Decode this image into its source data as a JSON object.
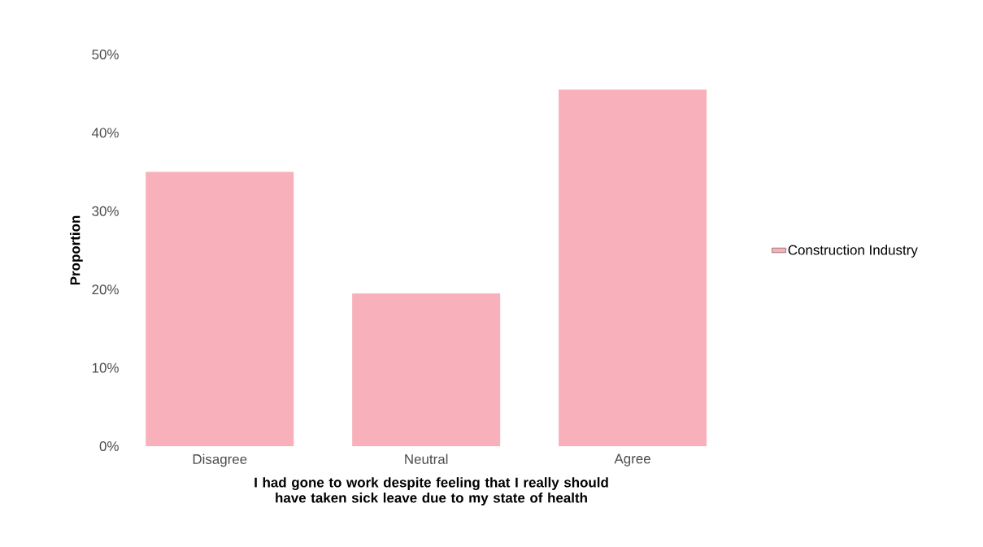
{
  "chart_data": {
    "type": "bar",
    "xlabel": "I had gone to work despite feeling that I really should have taken sick leave due to my state of health",
    "ylabel": "Proportion",
    "categories": [
      "Disagree",
      "Neutral",
      "Agree"
    ],
    "series": [
      {
        "name": "Construction Industry",
        "color": "#f8b0bb",
        "values": [
          35,
          19.5,
          45.5
        ]
      }
    ],
    "ylim": [
      0,
      50
    ],
    "yticks": [
      {
        "value": 0,
        "label": "0%"
      },
      {
        "value": 10,
        "label": "10%"
      },
      {
        "value": 20,
        "label": "20%"
      },
      {
        "value": 30,
        "label": "30%"
      },
      {
        "value": 40,
        "label": "40%"
      },
      {
        "value": 50,
        "label": "50%"
      }
    ],
    "grid": false,
    "legend": "right"
  }
}
